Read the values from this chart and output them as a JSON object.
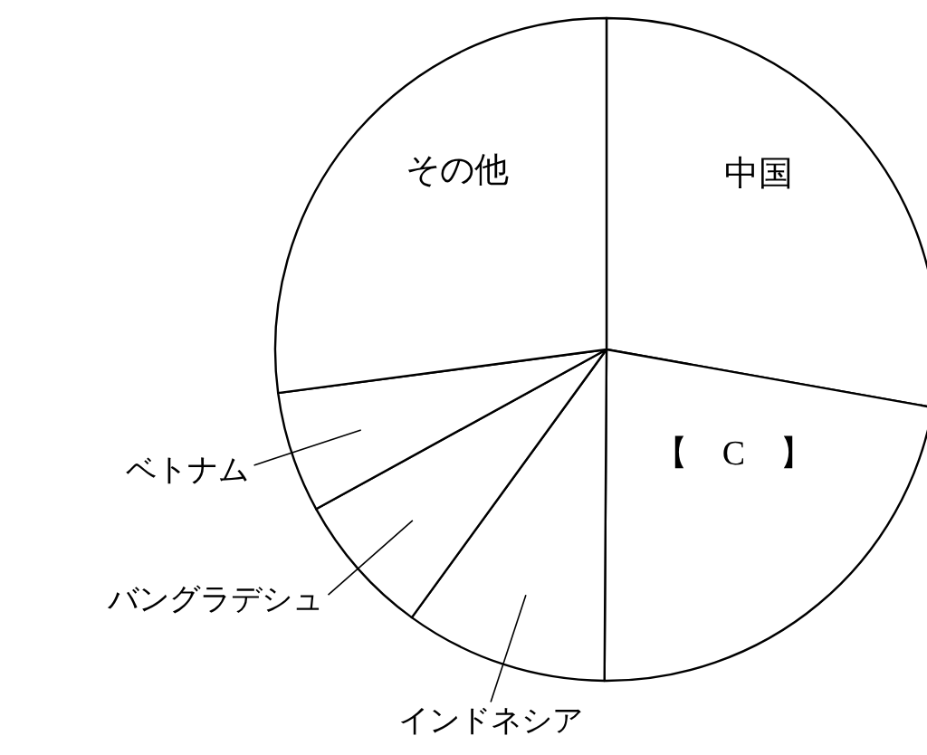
{
  "chart_data": {
    "type": "pie",
    "categories": [
      "中国",
      "【　C　】",
      "インドネシア",
      "バングラデシュ",
      "ベトナム",
      "その他"
    ],
    "values": [
      27.8,
      22.3,
      9.9,
      7.0,
      5.9,
      27.1
    ],
    "colors": [
      "#ffffff",
      "#ffffff",
      "#ffffff",
      "#ffffff",
      "#ffffff",
      "#ffffff"
    ]
  }
}
